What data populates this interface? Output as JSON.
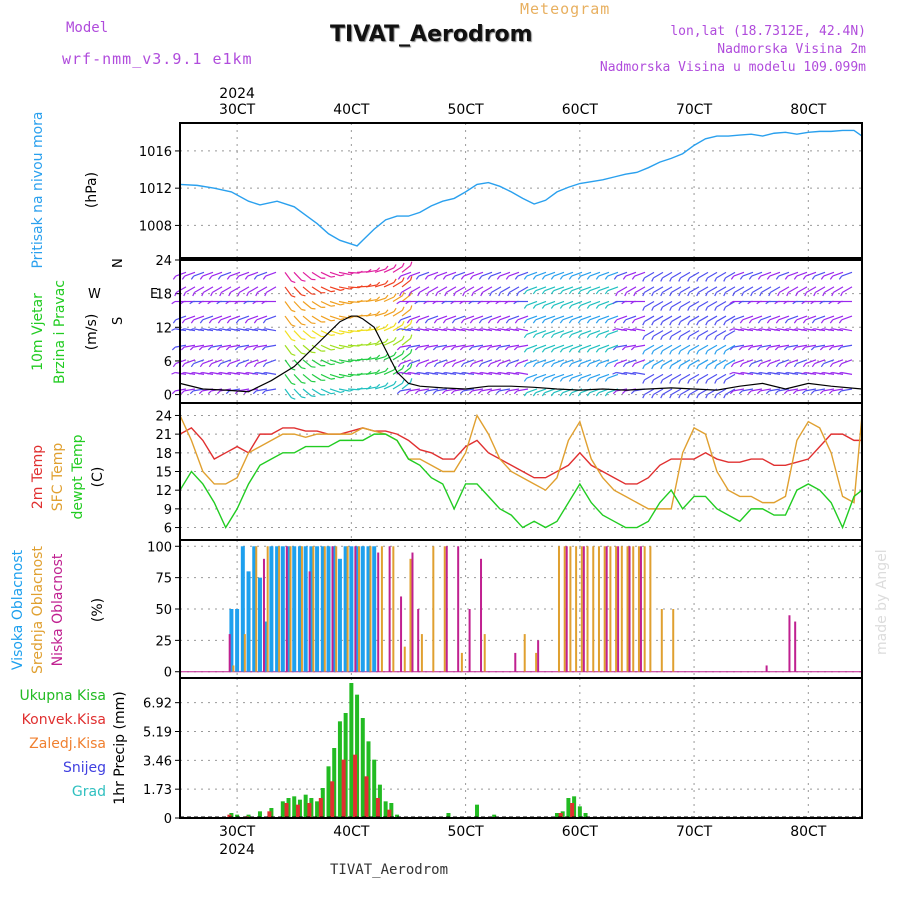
{
  "header": {
    "model_label": "Model",
    "model_name": "wrf-nmm_v3.9.1 e1km",
    "product": "Meteogram",
    "station": "TIVAT_Aerodrom",
    "lonlat": "lon,lat (18.7312E, 42.4N)",
    "elevation": "Nadmorska Visina 2m",
    "model_elevation": "Nadmorska Visina u modelu 109.099m",
    "footer_station": "TIVAT_Aerodrom",
    "watermark": "made by Angel"
  },
  "colors": {
    "pressure": "#2aa0ee",
    "temp2m": "#e03030",
    "sfc": "#e0a030",
    "dewpt": "#22cc22",
    "high_cloud": "#1ea0ee",
    "mid_cloud": "#e0a030",
    "low_cloud": "#c02090",
    "total_precip": "#22bb22",
    "convective": "#e03030",
    "freezing": "#f08030",
    "snow": "#4040e0",
    "hail": "#30c0c0"
  },
  "chart_data": [
    {
      "type": "line",
      "name": "pressure",
      "ylabel_lines": [
        "Pritisak na nivou mora",
        "(hPa)"
      ],
      "x_ticks_top": [
        "30CT",
        "40CT",
        "50CT",
        "60CT",
        "70CT",
        "80CT"
      ],
      "x_year": "2024",
      "xlim": [
        -0.5,
        5.47
      ],
      "ylim": [
        1004.5,
        1019
      ],
      "y_ticks": [
        1008,
        1012,
        1016
      ],
      "grid": true,
      "x": [
        -0.5,
        -0.35,
        -0.2,
        -0.05,
        0.1,
        0.2,
        0.35,
        0.5,
        0.6,
        0.7,
        0.8,
        0.9,
        1.0,
        1.05,
        1.1,
        1.2,
        1.3,
        1.4,
        1.5,
        1.6,
        1.7,
        1.8,
        1.9,
        2.0,
        2.1,
        2.2,
        2.3,
        2.4,
        2.5,
        2.6,
        2.7,
        2.8,
        2.9,
        3.0,
        3.1,
        3.2,
        3.3,
        3.4,
        3.5,
        3.6,
        3.7,
        3.8,
        3.9,
        4.0,
        4.1,
        4.2,
        4.3,
        4.4,
        4.5,
        4.6,
        4.7,
        4.8,
        4.9,
        5.0,
        5.1,
        5.2,
        5.3,
        5.4,
        5.47
      ],
      "y": [
        1012.4,
        1012.3,
        1012.0,
        1011.6,
        1010.6,
        1010.2,
        1010.6,
        1010.0,
        1009.1,
        1008.2,
        1007.1,
        1006.4,
        1006.0,
        1005.8,
        1006.4,
        1007.6,
        1008.6,
        1009.0,
        1009.0,
        1009.4,
        1010.1,
        1010.6,
        1010.9,
        1011.6,
        1012.4,
        1012.6,
        1012.2,
        1011.6,
        1010.9,
        1010.3,
        1010.7,
        1011.6,
        1012.1,
        1012.5,
        1012.7,
        1012.9,
        1013.2,
        1013.5,
        1013.7,
        1014.2,
        1014.8,
        1015.2,
        1015.7,
        1016.6,
        1017.3,
        1017.6,
        1017.6,
        1017.7,
        1017.8,
        1017.6,
        1017.9,
        1018.0,
        1017.8,
        1018.0,
        1018.1,
        1018.1,
        1018.2,
        1018.2,
        1017.6
      ]
    },
    {
      "type": "line",
      "name": "wind",
      "ylabel_lines": [
        "10m Vjetar",
        "Brzina i Pravac",
        "(m/s)"
      ],
      "direction_legend": [
        "N",
        "E",
        "W",
        "S"
      ],
      "ylim": [
        -1.5,
        24
      ],
      "y_ticks": [
        0,
        6,
        12,
        18,
        24
      ],
      "x": [
        -0.5,
        -0.3,
        -0.1,
        0.1,
        0.3,
        0.5,
        0.6,
        0.7,
        0.8,
        0.9,
        1.0,
        1.05,
        1.1,
        1.2,
        1.3,
        1.4,
        1.5,
        1.6,
        1.8,
        2.0,
        2.2,
        2.4,
        2.6,
        2.8,
        3.0,
        3.2,
        3.4,
        3.6,
        3.8,
        4.0,
        4.2,
        4.4,
        4.6,
        4.8,
        5.0,
        5.2,
        5.47
      ],
      "y": [
        2.0,
        1.0,
        0.8,
        0.5,
        2.5,
        5.0,
        7.0,
        9.0,
        11.0,
        13.0,
        14.0,
        14.0,
        13.5,
        12.0,
        8.0,
        4.0,
        2.0,
        1.5,
        1.2,
        1.0,
        1.5,
        1.5,
        1.3,
        1.0,
        0.8,
        1.0,
        0.8,
        1.0,
        1.2,
        1.0,
        0.8,
        1.5,
        2.0,
        1.0,
        2.0,
        1.5,
        1.0
      ]
    },
    {
      "type": "line",
      "name": "temperature",
      "ylabel_lines": [
        "2m Temp",
        "SFC Temp",
        "dewpt Temp",
        "(C)"
      ],
      "ylim": [
        4,
        26
      ],
      "y_ticks": [
        6,
        9,
        12,
        15,
        18,
        21,
        24
      ],
      "x": [
        -0.5,
        -0.4,
        -0.3,
        -0.2,
        -0.1,
        0.0,
        0.1,
        0.2,
        0.3,
        0.4,
        0.5,
        0.6,
        0.7,
        0.8,
        0.9,
        1.0,
        1.1,
        1.2,
        1.3,
        1.4,
        1.5,
        1.6,
        1.7,
        1.8,
        1.9,
        2.0,
        2.1,
        2.2,
        2.3,
        2.4,
        2.5,
        2.6,
        2.7,
        2.8,
        2.9,
        3.0,
        3.1,
        3.2,
        3.3,
        3.4,
        3.5,
        3.6,
        3.7,
        3.8,
        3.9,
        4.0,
        4.1,
        4.2,
        4.3,
        4.4,
        4.5,
        4.6,
        4.7,
        4.8,
        4.9,
        5.0,
        5.1,
        5.2,
        5.3,
        5.4,
        5.47
      ],
      "series": [
        {
          "name": "2m Temp",
          "values": [
            21,
            22,
            20,
            17,
            18,
            19,
            18,
            21,
            21,
            22,
            22,
            21.5,
            21.5,
            21,
            21,
            21.5,
            22,
            21.5,
            21.5,
            21,
            20,
            18.5,
            18,
            17,
            17,
            19,
            20,
            18,
            17,
            16,
            15,
            14,
            14,
            15,
            16,
            18,
            16,
            15,
            14,
            13,
            13,
            14,
            16,
            17,
            17,
            17,
            18,
            17,
            16.5,
            16.5,
            17,
            17,
            16,
            16,
            16.5,
            17,
            19,
            21,
            21,
            20,
            20
          ]
        },
        {
          "name": "SFC Temp",
          "values": [
            24,
            20,
            15,
            13,
            13,
            14,
            18,
            19,
            20,
            21,
            21,
            20.5,
            21,
            21,
            21,
            21,
            22,
            21.5,
            21,
            20,
            17,
            17,
            16,
            15,
            15,
            18,
            24,
            21,
            17,
            15,
            14,
            13,
            12,
            14,
            20,
            23,
            17,
            14,
            12,
            11,
            10,
            9,
            9,
            9,
            18,
            22,
            21,
            15,
            12,
            11,
            11,
            10,
            10,
            11,
            20,
            23,
            22,
            18,
            11,
            10,
            24
          ]
        },
        {
          "name": "dewpt Temp",
          "values": [
            12,
            15,
            13,
            10,
            6,
            9,
            13,
            16,
            17,
            18,
            18,
            19,
            19,
            19,
            20,
            20,
            20,
            21,
            21,
            20,
            17,
            16,
            14,
            13,
            9,
            13,
            13,
            11,
            9,
            8,
            6,
            7,
            6,
            7,
            10,
            13,
            10,
            8,
            7,
            6,
            6,
            7,
            10,
            12,
            9,
            11,
            11,
            9,
            8,
            7,
            9,
            9,
            8,
            8,
            12,
            13,
            12,
            10,
            6,
            11,
            12
          ]
        }
      ]
    },
    {
      "type": "bar",
      "name": "cloudiness",
      "ylabel_lines": [
        "Visoka Oblacnost",
        "Srednja Oblacnost",
        "Niska Oblacnost",
        "(%)"
      ],
      "ylim": [
        -5,
        105
      ],
      "y_ticks": [
        0,
        25,
        50,
        75,
        100
      ],
      "series": [
        {
          "name": "Visoka Oblacnost",
          "x": [
            -0.05,
            0.0,
            0.05,
            0.1,
            0.15,
            0.2,
            0.25,
            0.3,
            0.35,
            0.4,
            0.45,
            0.5,
            0.55,
            0.6,
            0.65,
            0.7,
            0.75,
            0.8,
            0.85,
            0.9,
            0.95,
            1.0,
            1.05,
            1.1,
            1.15,
            1.2
          ],
          "values": [
            50,
            50,
            100,
            80,
            100,
            75,
            40,
            100,
            100,
            100,
            100,
            100,
            100,
            100,
            100,
            100,
            100,
            100,
            100,
            90,
            100,
            100,
            100,
            100,
            100,
            100
          ]
        },
        {
          "name": "Srednja Oblacnost",
          "x": [
            -0.05,
            0.05,
            0.15,
            0.25,
            0.35,
            0.45,
            0.55,
            0.65,
            0.75,
            0.85,
            0.95,
            1.05,
            1.15,
            1.25,
            1.35,
            1.45,
            1.5,
            1.6,
            1.7,
            1.8,
            1.95,
            2.15,
            2.5,
            2.6,
            2.8,
            2.85,
            2.9,
            2.95,
            3.0,
            3.05,
            3.1,
            3.15,
            3.2,
            3.25,
            3.3,
            3.35,
            3.4,
            3.45,
            3.5,
            3.55,
            3.6,
            3.7,
            3.8
          ],
          "values": [
            5,
            30,
            100,
            100,
            100,
            100,
            100,
            100,
            100,
            100,
            100,
            100,
            100,
            100,
            100,
            20,
            90,
            30,
            100,
            100,
            15,
            30,
            30,
            15,
            100,
            100,
            100,
            100,
            100,
            100,
            100,
            100,
            100,
            100,
            100,
            100,
            100,
            100,
            100,
            100,
            100,
            50,
            50
          ]
        },
        {
          "name": "Niska Oblacnost",
          "x": [
            -0.1,
            0.2,
            0.4,
            0.6,
            0.8,
            1.0,
            1.2,
            1.3,
            1.4,
            1.5,
            1.55,
            1.8,
            1.9,
            2.0,
            2.1,
            2.4,
            2.6,
            2.85,
            3.0,
            3.2,
            3.3,
            3.4,
            3.5,
            4.6,
            4.8,
            4.85
          ],
          "values": [
            30,
            90,
            100,
            80,
            100,
            100,
            95,
            100,
            60,
            95,
            50,
            100,
            100,
            50,
            90,
            15,
            25,
            100,
            100,
            100,
            100,
            100,
            100,
            5,
            45,
            40
          ]
        }
      ]
    },
    {
      "type": "bar",
      "name": "precipitation",
      "ylabel_lines": [
        "1hr Precip (mm)"
      ],
      "legend": [
        "Ukupna Kisa",
        "Konvek.Kisa",
        "Zaledj.Kisa",
        "Snijeg",
        "Grad"
      ],
      "ylim": [
        0,
        8.4
      ],
      "y_ticks": [
        0,
        1.73,
        3.46,
        5.19,
        6.92
      ],
      "x_ticks_bottom": [
        "30CT",
        "40CT",
        "50CT",
        "60CT",
        "70CT",
        "80CT"
      ],
      "x_year": "2024",
      "series": [
        {
          "name": "Ukupna Kisa",
          "x": [
            -0.05,
            0.0,
            0.1,
            0.2,
            0.3,
            0.4,
            0.45,
            0.5,
            0.55,
            0.6,
            0.65,
            0.7,
            0.75,
            0.8,
            0.85,
            0.9,
            0.95,
            1.0,
            1.05,
            1.1,
            1.15,
            1.2,
            1.25,
            1.3,
            1.35,
            1.4,
            1.85,
            2.1,
            2.25,
            2.8,
            2.85,
            2.9,
            2.95,
            3.0,
            3.05
          ],
          "values": [
            0.3,
            0.2,
            0.2,
            0.4,
            0.6,
            1.0,
            1.2,
            1.3,
            1.1,
            1.4,
            1.2,
            1.0,
            1.8,
            3.1,
            4.2,
            5.8,
            6.3,
            8.1,
            7.4,
            6.0,
            4.6,
            3.5,
            2.0,
            1.0,
            0.9,
            0.2,
            0.3,
            0.8,
            0.2,
            0.3,
            0.4,
            1.2,
            1.3,
            0.7,
            0.3
          ]
        },
        {
          "name": "Konvek.Kisa",
          "x": [
            -0.05,
            0.1,
            0.3,
            0.45,
            0.55,
            0.65,
            0.75,
            0.85,
            0.95,
            1.05,
            1.15,
            1.25,
            1.35,
            2.85,
            2.95
          ],
          "values": [
            0.2,
            0.1,
            0.4,
            0.9,
            0.8,
            0.9,
            1.2,
            2.2,
            3.5,
            3.8,
            2.5,
            1.2,
            0.5,
            0.3,
            0.9
          ]
        }
      ]
    }
  ]
}
